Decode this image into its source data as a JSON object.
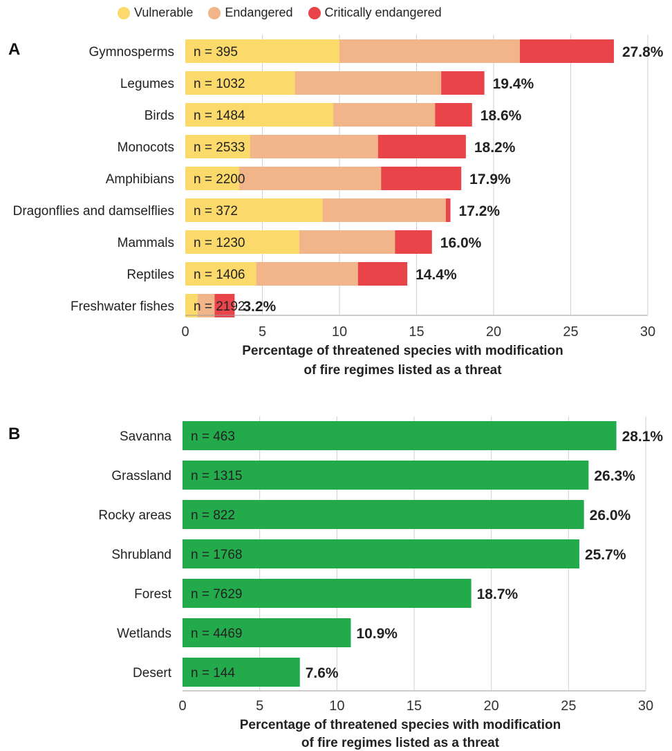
{
  "legend": [
    {
      "label": "Vulnerable",
      "color": "#fbd96a"
    },
    {
      "label": "Endangered",
      "color": "#f2b589"
    },
    {
      "label": "Critically endangered",
      "color": "#e8444a"
    }
  ],
  "chart_data": [
    {
      "type": "bar",
      "orientation": "horizontal",
      "stacked": true,
      "panel": "A",
      "categories": [
        "Gymnosperms",
        "Legumes",
        "Birds",
        "Monocots",
        "Amphibians",
        "Dragonflies and damselflies",
        "Mammals",
        "Reptiles",
        "Freshwater fishes"
      ],
      "n_labels": [
        "n = 395",
        "n = 1032",
        "n = 1484",
        "n = 2533",
        "n = 2200",
        "n = 372",
        "n = 1230",
        "n = 1406",
        "n = 2192"
      ],
      "totals": [
        27.8,
        19.4,
        18.6,
        18.2,
        17.9,
        17.2,
        16.0,
        14.4,
        3.2
      ],
      "total_labels": [
        "27.8%",
        "19.4%",
        "18.6%",
        "18.2%",
        "17.9%",
        "17.2%",
        "16.0%",
        "14.4%",
        "3.2%"
      ],
      "series": [
        {
          "name": "Vulnerable",
          "color": "#fbd96a",
          "values": [
            10.0,
            7.1,
            9.6,
            4.2,
            3.5,
            8.9,
            7.4,
            4.6,
            0.8
          ]
        },
        {
          "name": "Endangered",
          "color": "#f2b589",
          "values": [
            11.7,
            9.5,
            6.6,
            8.3,
            9.2,
            8.0,
            6.2,
            6.6,
            1.1
          ]
        },
        {
          "name": "Critically endangered",
          "color": "#e8444a",
          "values": [
            6.1,
            2.8,
            2.4,
            5.7,
            5.2,
            0.3,
            2.4,
            3.2,
            1.3
          ]
        }
      ],
      "xlim": [
        0,
        30
      ],
      "xticks": [
        0,
        5,
        10,
        15,
        20,
        25,
        30
      ],
      "xlabel": [
        "Percentage of threatened species with modification",
        "of fire regimes listed as a threat"
      ],
      "grid": true
    },
    {
      "type": "bar",
      "orientation": "horizontal",
      "stacked": false,
      "panel": "B",
      "categories": [
        "Savanna",
        "Grassland",
        "Rocky areas",
        "Shrubland",
        "Forest",
        "Wetlands",
        "Desert"
      ],
      "n_labels": [
        "n = 463",
        "n = 1315",
        "n = 822",
        "n = 1768",
        "n = 7629",
        "n = 4469",
        "n = 144"
      ],
      "values": [
        28.1,
        26.3,
        26.0,
        25.7,
        18.7,
        10.9,
        7.6
      ],
      "value_labels": [
        "28.1%",
        "26.3%",
        "26.0%",
        "25.7%",
        "18.7%",
        "10.9%",
        "7.6%"
      ],
      "color": "#22aa4b",
      "xlim": [
        0,
        30
      ],
      "xticks": [
        0,
        5,
        10,
        15,
        20,
        25,
        30
      ],
      "xlabel": [
        "Percentage of threatened species with modification",
        "of fire regimes listed as a threat"
      ],
      "grid": true
    }
  ]
}
